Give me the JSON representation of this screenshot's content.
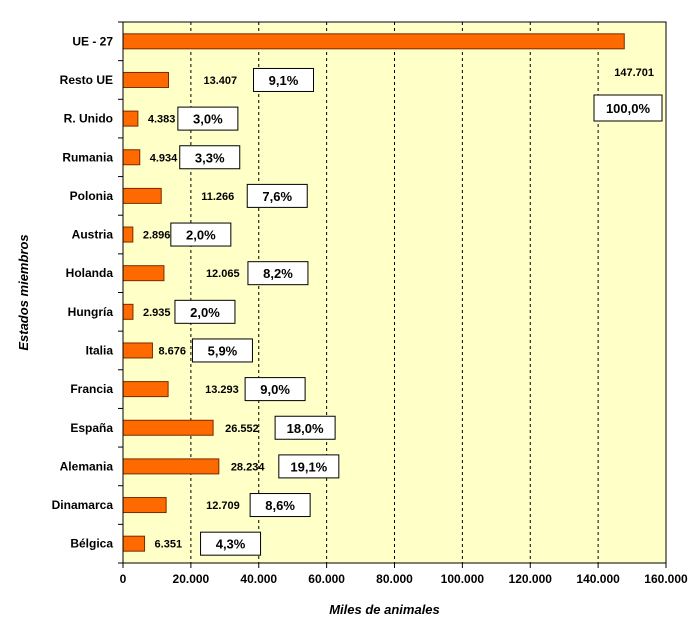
{
  "chart_data": {
    "type": "bar",
    "orientation": "horizontal",
    "title": "",
    "xlabel": "Miles de animales",
    "ylabel": "Estados miembros",
    "xlim": [
      0,
      160000
    ],
    "x_ticks": [
      0,
      20000,
      40000,
      60000,
      80000,
      100000,
      120000,
      140000,
      160000
    ],
    "x_tick_labels": [
      "0",
      "20.000",
      "40.000",
      "60.000",
      "80.000",
      "100.000",
      "120.000",
      "140.000",
      "160.000"
    ],
    "grid": "vertical dashed",
    "plot_background": "#FFFFC8",
    "bar_color": "#FF6A00",
    "bar_edge_color": "#7A2A00",
    "categories": [
      "UE - 27",
      "Resto UE",
      "R. Unido",
      "Rumania",
      "Polonia",
      "Austria",
      "Holanda",
      "Hungría",
      "Italia",
      "Francia",
      "España",
      "Alemania",
      "Dinamarca",
      "Bélgica"
    ],
    "values": [
      147701,
      13407,
      4383,
      4934,
      11266,
      2896,
      12065,
      2935,
      8676,
      13293,
      26552,
      28234,
      12709,
      6351
    ],
    "value_labels": [
      "147.701",
      "13.407",
      "4.383",
      "4.934",
      "11.266",
      "2.896",
      "12.065",
      "2.935",
      "8.676",
      "13.293",
      "26.552",
      "28.234",
      "12.709",
      "6.351"
    ],
    "percent_labels": [
      "100,0%",
      "9,1%",
      "3,0%",
      "3,3%",
      "7,6%",
      "2,0%",
      "8,2%",
      "2,0%",
      "5,9%",
      "9,0%",
      "18,0%",
      "19,1%",
      "8,6%",
      "4,3%"
    ]
  }
}
